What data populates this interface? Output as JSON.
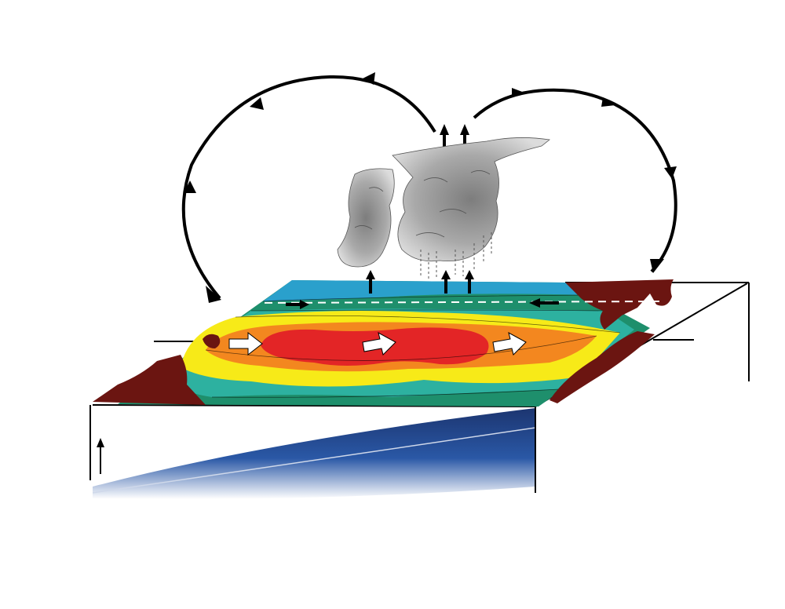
{
  "diagram": {
    "colors": {
      "ocean_deep": "#1c3570",
      "ocean_mid": "#2a58a6",
      "sst_red": "#e32526",
      "sst_orange": "#f3871f",
      "sst_yellow": "#f7ea18",
      "sst_teal": "#2db1a0",
      "sst_green": "#1e8f6c",
      "sst_blue": "#2aa0cc",
      "land": "#6b1511",
      "cloud": "#9a9a9a",
      "arrow": "#000000",
      "current_arrow": "#ffffff"
    },
    "icons": [
      "cloud-icon",
      "rain-icon",
      "up-arrow-icon",
      "right-arrow-icon",
      "left-arrow-icon",
      "circulation-arrow-icon"
    ]
  }
}
